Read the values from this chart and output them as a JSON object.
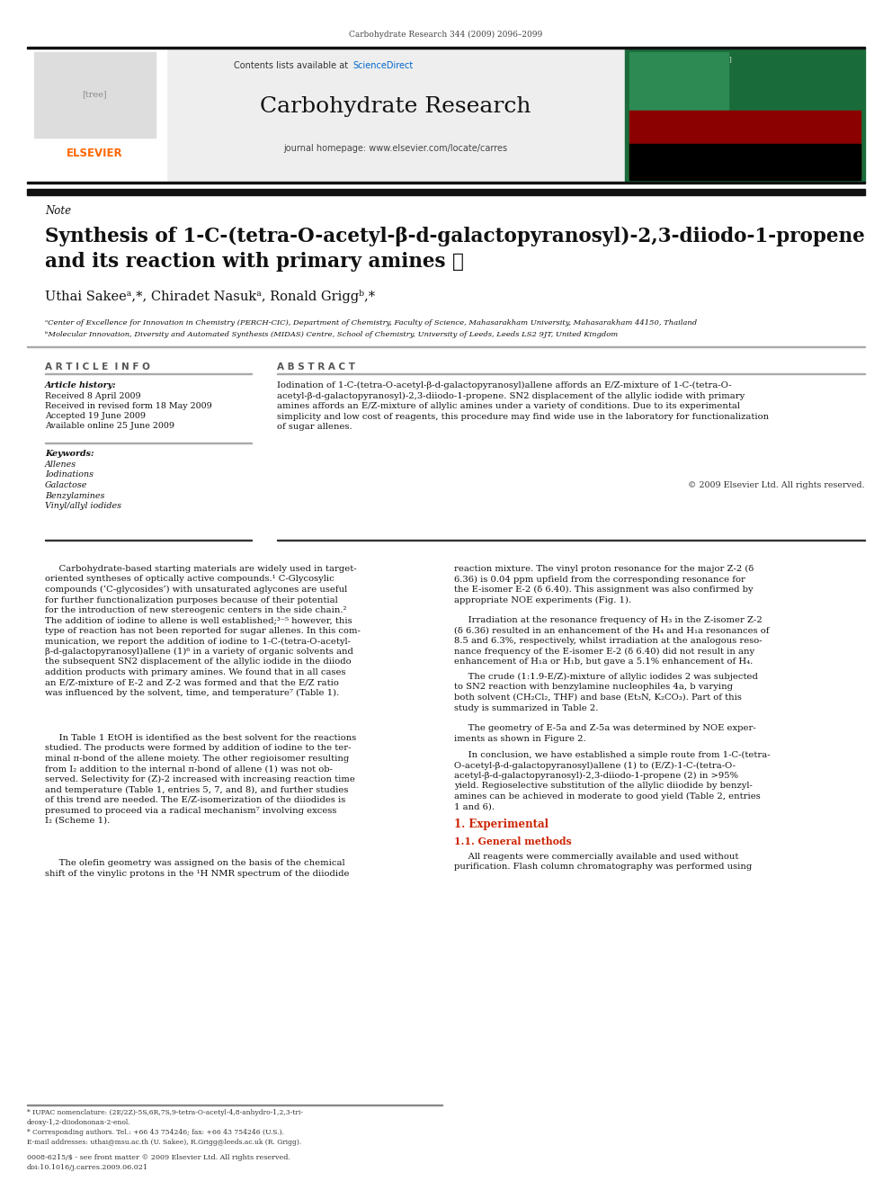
{
  "page_width": 9.92,
  "page_height": 13.23,
  "bg_color": "#ffffff",
  "header_citation": "Carbohydrate Research 344 (2009) 2096–2099",
  "journal_name": "Carbohydrate Research",
  "journal_homepage": "journal homepage: www.elsevier.com/locate/carres",
  "contents_line": "Contents lists available at ScienceDirect",
  "note_label": "Note",
  "title_line1": "Synthesis of 1-C-(tetra-O-acetyl-β-d-galactopyranosyl)-2,3-diiodo-1-propene",
  "title_line2": "and its reaction with primary amines ☆",
  "authors": "Uthai Sakeeᵃ,*, Chiradet Nasukᵃ, Ronald Griggᵇ,*",
  "affiliation_a": "ᵃCenter of Excellence for Innovation in Chemistry (PERCH-CIC), Department of Chemistry, Faculty of Science, Mahasarakham University, Mahasarakham 44150, Thailand",
  "affiliation_b": "ᵇMolecular Innovation, Diversity and Automated Synthesis (MIDAS) Centre, School of Chemistry, University of Leeds, Leeds LS2 9JT, United Kingdom",
  "article_info_header": "A R T I C L E  I N F O",
  "abstract_header": "A B S T R A C T",
  "article_history_label": "Article history:",
  "received": "Received 8 April 2009",
  "received_revised": "Received in revised form 18 May 2009",
  "accepted": "Accepted 19 June 2009",
  "available": "Available online 25 June 2009",
  "keywords_label": "Keywords:",
  "keywords": [
    "Allenes",
    "Iodinations",
    "Galactose",
    "Benzylamines",
    "Vinyl/allyl iodides"
  ],
  "abstract_text_1": "Iodination of 1-C-(tetra-O-acetyl-β-d-galactopyranosyl)allene affords an E/Z-mixture of 1-C-(tetra-O-",
  "abstract_text_2": "acetyl-β-d-galactopyranosyl)-2,3-diiodo-1-propene. SN2 displacement of the allylic iodide with primary",
  "abstract_text_3": "amines affords an E/Z-mixture of allylic amines under a variety of conditions. Due to its experimental",
  "abstract_text_4": "simplicity and low cost of reagents, this procedure may find wide use in the laboratory for functionalization",
  "abstract_text_5": "of sugar allenes.",
  "copyright": "© 2009 Elsevier Ltd. All rights reserved.",
  "body_left_1": "     Carbohydrate-based starting materials are widely used in target-",
  "body_left_2": "oriented syntheses of optically active compounds.¹ C-Glycosylic",
  "body_left_3": "compounds (‘C-glycosides’) with unsaturated aglycones are useful",
  "body_left_4": "for further functionalization purposes because of their potential",
  "body_left_5": "for the introduction of new stereogenic centers in the side chain.²",
  "body_left_6": "The addition of iodine to allene is well established;³⁻⁵ however, this",
  "body_left_7": "type of reaction has not been reported for sugar allenes. In this com-",
  "body_left_8": "munication, we report the addition of iodine to 1-C-(tetra-O-acetyl-",
  "body_left_9": "β-d-galactopyranosyl)allene (1)⁶ in a variety of organic solvents and",
  "body_left_10": "the subsequent SN2 displacement of the allylic iodide in the diiodo",
  "body_left_11": "addition products with primary amines. We found that in all cases",
  "body_left_12": "an E/Z-mixture of E-2 and Z-2 was formed and that the E/Z ratio",
  "body_left_13": "was influenced by the solvent, time, and temperature⁷ (Table 1).",
  "body_left_14": "     In Table 1 EtOH is identified as the best solvent for the reactions",
  "body_left_15": "studied. The products were formed by addition of iodine to the ter-",
  "body_left_16": "minal π-bond of the allene moiety. The other regioisomer resulting",
  "body_left_17": "from I₂ addition to the internal π-bond of allene (1) was not ob-",
  "body_left_18": "served. Selectivity for (Z)-2 increased with increasing reaction time",
  "body_left_19": "and temperature (Table 1, entries 5, 7, and 8), and further studies",
  "body_left_20": "of this trend are needed. The E/Z-isomerization of the diiodides is",
  "body_left_21": "presumed to proceed via a radical mechanism⁷ involving excess",
  "body_left_22": "I₂ (Scheme 1).",
  "body_left_23": "     The olefin geometry was assigned on the basis of the chemical",
  "body_left_24": "shift of the vinylic protons in the ¹H NMR spectrum of the diiodide",
  "body_right_1": "reaction mixture. The vinyl proton resonance for the major Z-2 (δ",
  "body_right_2": "6.36) is 0.04 ppm upfield from the corresponding resonance for",
  "body_right_3": "the E-isomer E-2 (δ 6.40). This assignment was also confirmed by",
  "body_right_4": "appropriate NOE experiments (Fig. 1).",
  "body_right_5": "     Irradiation at the resonance frequency of H₃ in the Z-isomer Z-2",
  "body_right_6": "(δ 6.36) resulted in an enhancement of the H₄ and H₁a resonances of",
  "body_right_7": "8.5 and 6.3%, respectively, whilst irradiation at the analogous reso-",
  "body_right_8": "nance frequency of the E-isomer E-2 (δ 6.40) did not result in any",
  "body_right_9": "enhancement of H₁a or H₁b, but gave a 5.1% enhancement of H₄.",
  "body_right_10": "     The crude (1:1.9-E/Z)-mixture of allylic iodides 2 was subjected",
  "body_right_11": "to SN2 reaction with benzylamine nucleophiles 4a, b varying",
  "body_right_12": "both solvent (CH₂Cl₂, THF) and base (Et₃N, K₂CO₃). Part of this",
  "body_right_13": "study is summarized in Table 2.",
  "body_right_14": "     The geometry of E-5a and Z-5a was determined by NOE exper-",
  "body_right_15": "iments as shown in Figure 2.",
  "body_right_16": "     In conclusion, we have established a simple route from 1-C-(tetra-",
  "body_right_17": "O-acetyl-β-d-galactopyranosyl)allene (1) to (E/Z)-1-C-(tetra-O-",
  "body_right_18": "acetyl-β-d-galactopyranosyl)-2,3-diiodo-1-propene (2) in >95%",
  "body_right_19": "yield. Regioselective substitution of the allylic diiodide by benzyl-",
  "body_right_20": "amines can be achieved in moderate to good yield (Table 2, entries",
  "body_right_21": "1 and 6).",
  "section_experimental": "1. Experimental",
  "section_general": "1.1. General methods",
  "general_text_1": "     All reagents were commercially available and used without",
  "general_text_2": "purification. Flash column chromatography was performed using",
  "footer_note": "* IUPAC nomenclature: (2E/2Z)-5S,6R,7S,9-tetra-O-acetyl-4,8-anhydro-1,2,3-tri-",
  "footer_note2": "deoxy-1,2-diiodononan-2-enol.",
  "footer_corresponding": "* Corresponding authors. Tel.: +66 43 754246; fax: +66 43 754246 (U.S.).",
  "footer_email": "E-mail addresses: uthai@msu.ac.th (U. Sakee), R.Grigg@leeds.ac.uk (R. Grigg).",
  "footer_issn": "0008-6215/$ - see front matter © 2009 Elsevier Ltd. All rights reserved.",
  "footer_doi": "doi:10.1016/j.carres.2009.06.021",
  "elsevier_color": "#FF6600",
  "sciencedirect_color": "#0066CC",
  "red_section_color": "#cc2200"
}
